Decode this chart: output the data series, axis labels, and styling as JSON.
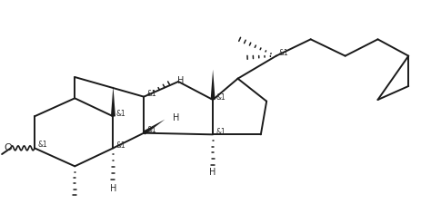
{
  "bg_color": "#ffffff",
  "line_color": "#1a1a1a",
  "line_width": 1.4,
  "text_color": "#2a2a2a",
  "font_size": 6.5,
  "stereo_label": "&1",
  "H_label": "H",
  "O_label": "O"
}
